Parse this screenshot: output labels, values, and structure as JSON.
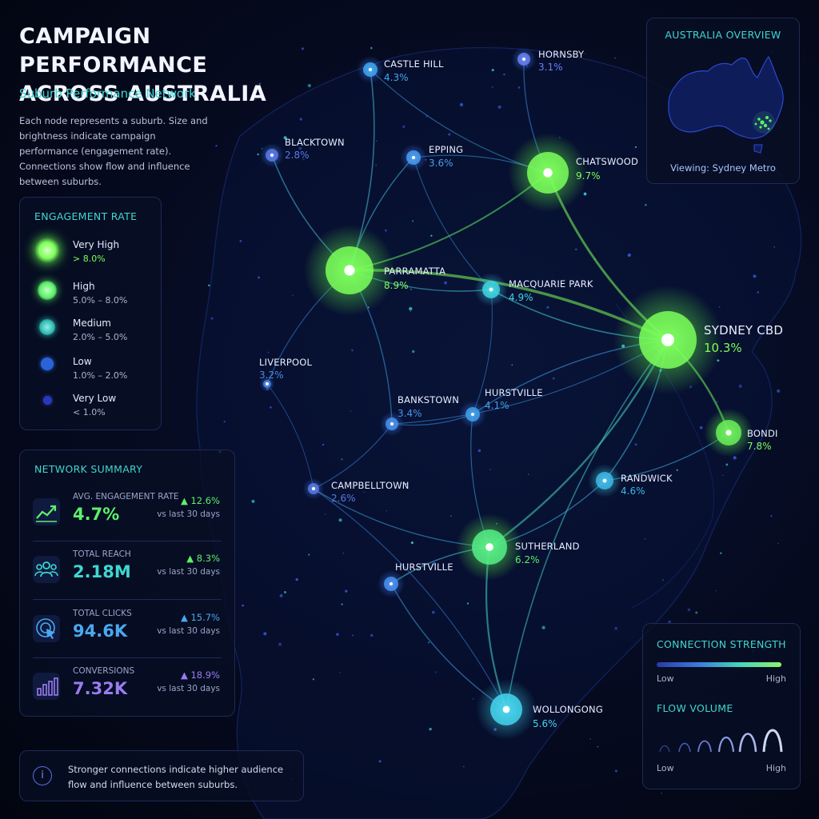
{
  "header": {
    "title_line1": "CAMPAIGN PERFORMANCE",
    "title_line2": "ACROSS AUSTRALIA",
    "subtitle": "Suburb Performance Network",
    "description": "Each node represents a suburb. Size and brightness indicate campaign performance (engagement rate). Connections show flow and influence between suburbs."
  },
  "legend": {
    "title": "ENGAGEMENT RATE",
    "items": [
      {
        "label": "Very High",
        "range": "> 8.0%",
        "color": "#7bff5a",
        "range_color": "#7bff5a"
      },
      {
        "label": "High",
        "range": "5.0% – 8.0%",
        "color": "#5cf06a",
        "range_color": "#aab4d2"
      },
      {
        "label": "Medium",
        "range": "2.0% – 5.0%",
        "color": "#2fb8b0",
        "range_color": "#aab4d2"
      },
      {
        "label": "Low",
        "range": "1.0% – 2.0%",
        "color": "#2a63d8",
        "range_color": "#aab4d2"
      },
      {
        "label": "Very Low",
        "range": "< 1.0%",
        "color": "#2a38b8",
        "range_color": "#aab4d2"
      }
    ]
  },
  "summary": {
    "title": "NETWORK SUMMARY",
    "metrics": [
      {
        "label": "AVG. ENGAGEMENT RATE",
        "value": "4.7%",
        "change": "▲ 12.6%",
        "note": "vs last 30 days",
        "color": "#5cf06a",
        "icon": "trend-up-icon"
      },
      {
        "label": "TOTAL REACH",
        "value": "2.18M",
        "change": "▲ 8.3%",
        "note": "vs last 30 days",
        "color": "#3fd6d0",
        "icon": "people-icon"
      },
      {
        "label": "TOTAL CLICKS",
        "value": "94.6K",
        "change": "▲ 15.7%",
        "note": "vs last 30 days",
        "color": "#4aa8f0",
        "icon": "cursor-click-icon"
      },
      {
        "label": "CONVERSIONS",
        "value": "7.32K",
        "change": "▲ 18.9%",
        "note": "vs last 30 days",
        "color": "#9a7cf0",
        "icon": "bar-chart-icon"
      }
    ]
  },
  "footer_note": {
    "text": "Stronger connections indicate higher audience flow and influence between suburbs.",
    "icon": "info-icon"
  },
  "overview": {
    "title": "AUSTRALIA OVERVIEW",
    "viewing": "Viewing: Sydney Metro"
  },
  "connection_panel": {
    "strength_title": "CONNECTION STRENGTH",
    "volume_title": "FLOW VOLUME",
    "low": "Low",
    "high": "High"
  },
  "suburbs": [
    {
      "id": "sydney-cbd",
      "name": "SYDNEY CBD",
      "pct": "10.3%",
      "level": "very-high",
      "color": "#7bff5a"
    },
    {
      "id": "parramatta",
      "name": "PARRAMATTA",
      "pct": "8.9%",
      "level": "very-high",
      "color": "#7bff5a"
    },
    {
      "id": "chatswood",
      "name": "CHATSWOOD",
      "pct": "9.7%",
      "level": "very-high",
      "color": "#7bff5a"
    },
    {
      "id": "bondi",
      "name": "BONDI",
      "pct": "7.8%",
      "level": "high",
      "color": "#6bf05a"
    },
    {
      "id": "sutherland",
      "name": "SUTHERLAND",
      "pct": "6.2%",
      "level": "high",
      "color": "#55ee88"
    },
    {
      "id": "wollongong",
      "name": "WOLLONGONG",
      "pct": "5.6%",
      "level": "high",
      "color": "#45d6f0"
    },
    {
      "id": "macquarie-park",
      "name": "MACQUARIE PARK",
      "pct": "4.9%",
      "level": "medium",
      "color": "#3fd6e0"
    },
    {
      "id": "randwick",
      "name": "RANDWICK",
      "pct": "4.6%",
      "level": "medium",
      "color": "#3fb8e8"
    },
    {
      "id": "castle-hill",
      "name": "CASTLE HILL",
      "pct": "4.3%",
      "level": "medium",
      "color": "#3fa8f0"
    },
    {
      "id": "hurstville-east",
      "name": "HURSTVILLE",
      "pct": "4.1%",
      "level": "medium",
      "color": "#3fa0e8"
    },
    {
      "id": "epping",
      "name": "EPPING",
      "pct": "3.6%",
      "level": "medium",
      "color": "#4a9cf0"
    },
    {
      "id": "bankstown",
      "name": "BANKSTOWN",
      "pct": "3.4%",
      "level": "medium",
      "color": "#4a90e8"
    },
    {
      "id": "liverpool",
      "name": "LIVERPOOL",
      "pct": "3.2%",
      "level": "medium",
      "color": "#4a88e0"
    },
    {
      "id": "hornsby",
      "name": "HORNSBY",
      "pct": "3.1%",
      "level": "medium",
      "color": "#6a80f0"
    },
    {
      "id": "blacktown",
      "name": "BLACKTOWN",
      "pct": "2.8%",
      "level": "medium",
      "color": "#5a78e8"
    },
    {
      "id": "campbelltown",
      "name": "CAMPBELLTOWN",
      "pct": "2.6%",
      "level": "medium",
      "color": "#5a78e0"
    },
    {
      "id": "hurstville-south",
      "name": "HURSTVILLE",
      "pct": "",
      "level": "medium",
      "color": "#4a90f0"
    }
  ]
}
